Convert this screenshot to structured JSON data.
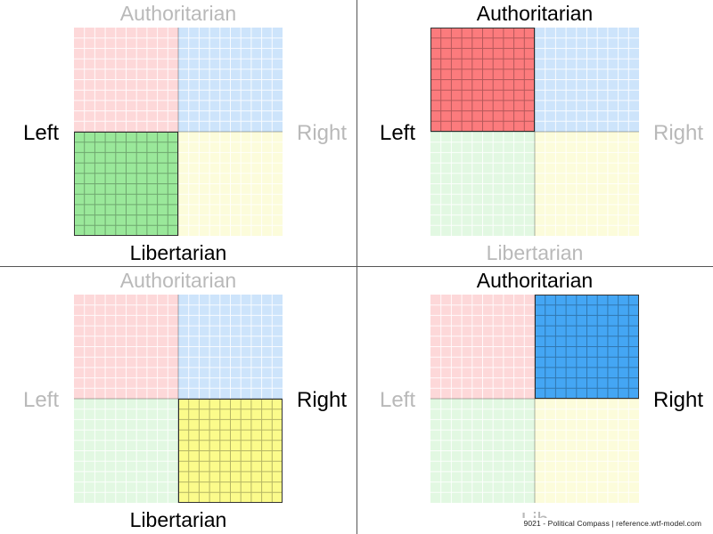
{
  "labels": {
    "top": "Authoritarian",
    "bottom": "Libertarian",
    "left": "Left",
    "right": "Right",
    "bottom_truncated": "Lib"
  },
  "quadrant_colors": {
    "auth_left": {
      "full": "#fc7b7d",
      "faded": "#fdd8d9"
    },
    "auth_right": {
      "full": "#44a6f4",
      "faded": "#cde4fb"
    },
    "lib_left": {
      "full": "#9ae89a",
      "faded": "#e2f8e2"
    },
    "lib_right": {
      "full": "#fbfb8b",
      "faded": "#fcfcdb"
    }
  },
  "label_colors": {
    "active": "#000000",
    "inactive": "#b9b9b9"
  },
  "panels": [
    {
      "id": "lib-left",
      "highlight": "lib_left"
    },
    {
      "id": "auth-left",
      "highlight": "auth_left"
    },
    {
      "id": "lib-right",
      "highlight": "lib_right"
    },
    {
      "id": "auth-right",
      "highlight": "auth_right"
    }
  ],
  "watermark": "9021 - Political Compass | reference.wtf-model.com"
}
